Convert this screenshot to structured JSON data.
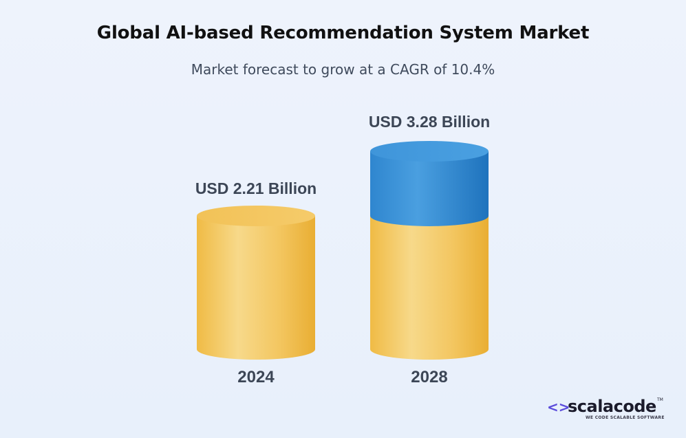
{
  "header": {
    "title": "Global AI-based Recommendation System Market",
    "subtitle": "Market forecast to grow at a CAGR of 10.4%"
  },
  "chart_data": {
    "type": "bar",
    "categories": [
      "2024",
      "2028"
    ],
    "values": [
      2.21,
      3.28
    ],
    "value_labels": [
      "USD 2.21 Billion",
      "USD 3.28 Billion"
    ],
    "title": "Global AI-based Recommendation System Market",
    "subtitle": "Market forecast to grow at a CAGR of 10.4%",
    "xlabel": "",
    "ylabel": "",
    "ylim": [
      0,
      3.28
    ],
    "grid": false,
    "colors": {
      "base": "#f2c357",
      "growth": "#3a8fd3"
    }
  },
  "logo": {
    "mark": "<>",
    "name": "scalacode",
    "tm": "TM",
    "tagline": "WE CODE SCALABLE SOFTWARE"
  }
}
